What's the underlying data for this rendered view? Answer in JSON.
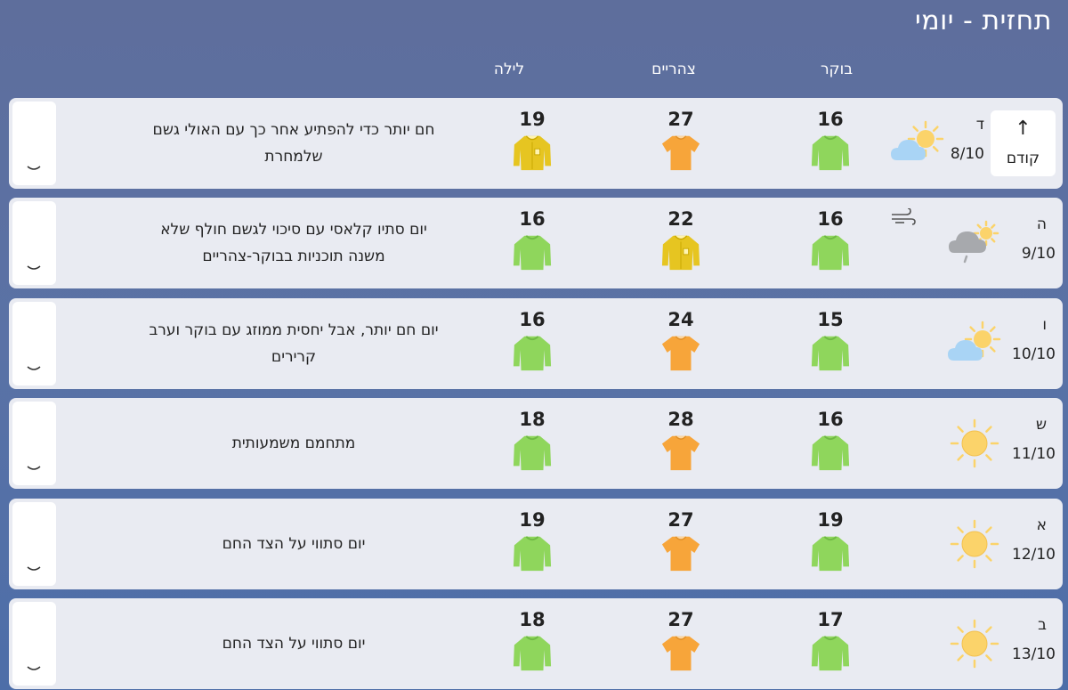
{
  "header": {
    "title": "תחזית - יומי",
    "columns": {
      "morning": "בוקר",
      "noon": "צהריים",
      "night": "לילה"
    }
  },
  "prev_button": {
    "arrow": "↑",
    "label": "קודם"
  },
  "colors": {
    "green_shirt": "#8fd65c",
    "orange_shirt": "#f7a53a",
    "yellow_shirt": "#e6c521",
    "sun": "#fbd36a",
    "row_bg": "#e9ebf2"
  },
  "days": [
    {
      "letter": "ד",
      "date": "8/10",
      "icon": "partly-cloudy-icon",
      "wind": false,
      "morning": "16",
      "noon": "27",
      "night": "19",
      "morning_shirt": "green",
      "noon_shirt": "orange",
      "night_shirt": "yellow",
      "desc": "חם יותר כדי להפתיע אחר כך עם האולי גשם שלמחרת"
    },
    {
      "letter": "ה",
      "date": "9/10",
      "icon": "cloud-rain-sun-icon",
      "wind": true,
      "morning": "16",
      "noon": "22",
      "night": "16",
      "morning_shirt": "green",
      "noon_shirt": "yellow",
      "night_shirt": "green",
      "desc": "יום סתיו קלאסי עם סיכוי לגשם חולף שלא משנה תוכניות בבוקר-צהריים"
    },
    {
      "letter": "ו",
      "date": "10/10",
      "icon": "partly-cloudy-icon",
      "wind": false,
      "morning": "15",
      "noon": "24",
      "night": "16",
      "morning_shirt": "green",
      "noon_shirt": "orange",
      "night_shirt": "green",
      "desc": "יום חם יותר, אבל יחסית ממוזג עם בוקר וערב קרירים"
    },
    {
      "letter": "ש",
      "date": "11/10",
      "icon": "sun-icon",
      "wind": false,
      "morning": "16",
      "noon": "28",
      "night": "18",
      "morning_shirt": "green",
      "noon_shirt": "orange",
      "night_shirt": "green",
      "desc": "מתחמם משמעותית"
    },
    {
      "letter": "א",
      "date": "12/10",
      "icon": "sun-icon",
      "wind": false,
      "morning": "19",
      "noon": "27",
      "night": "19",
      "morning_shirt": "green",
      "noon_shirt": "orange",
      "night_shirt": "green",
      "desc": "יום סתווי על הצד החם"
    },
    {
      "letter": "ב",
      "date": "13/10",
      "icon": "sun-icon",
      "wind": false,
      "morning": "17",
      "noon": "27",
      "night": "18",
      "morning_shirt": "green",
      "noon_shirt": "orange",
      "night_shirt": "green",
      "desc": "יום סתווי על הצד החם"
    }
  ]
}
